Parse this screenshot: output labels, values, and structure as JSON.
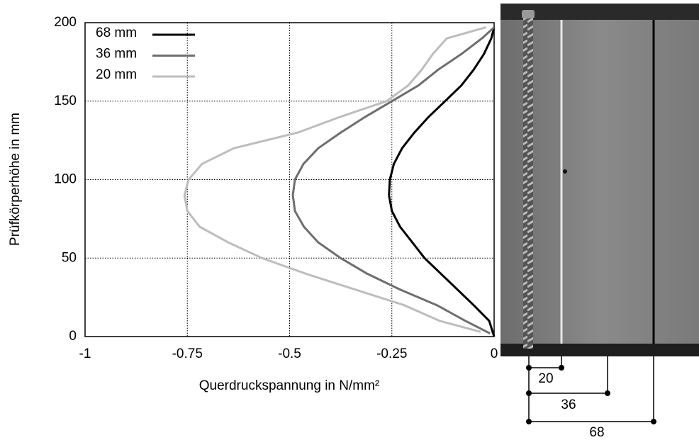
{
  "chart_data": {
    "type": "line",
    "xlabel": "Querdruckspannung in N/mm²",
    "ylabel": "Prüfkörperhöhe in mm",
    "xlim": [
      -1,
      0
    ],
    "xticks": [
      -1,
      -0.75,
      -0.5,
      -0.25,
      0
    ],
    "ylim": [
      0,
      200
    ],
    "yticks": [
      0,
      50,
      100,
      150,
      200
    ],
    "grid": true,
    "legend": "upper left",
    "series": [
      {
        "name": "68 mm",
        "color": "#000000",
        "y": [
          0,
          10,
          20,
          30,
          40,
          50,
          60,
          70,
          80,
          90,
          100,
          110,
          120,
          130,
          140,
          150,
          160,
          170,
          180,
          190,
          197
        ],
        "values": [
          0,
          -0.012,
          -0.05,
          -0.09,
          -0.13,
          -0.17,
          -0.2,
          -0.23,
          -0.25,
          -0.257,
          -0.255,
          -0.245,
          -0.225,
          -0.195,
          -0.16,
          -0.12,
          -0.08,
          -0.05,
          -0.025,
          -0.007,
          0
        ]
      },
      {
        "name": "36 mm",
        "color": "#6e6e6e",
        "y": [
          2,
          10,
          20,
          30,
          40,
          50,
          60,
          70,
          80,
          90,
          100,
          110,
          120,
          130,
          140,
          150,
          160,
          170,
          180,
          190,
          197
        ],
        "values": [
          -0.01,
          -0.07,
          -0.14,
          -0.23,
          -0.31,
          -0.375,
          -0.43,
          -0.465,
          -0.487,
          -0.492,
          -0.487,
          -0.466,
          -0.43,
          -0.375,
          -0.315,
          -0.25,
          -0.185,
          -0.137,
          -0.08,
          -0.03,
          0
        ]
      },
      {
        "name": "20 mm",
        "color": "#bdbdbd",
        "y": [
          3,
          10,
          20,
          30,
          40,
          50,
          60,
          70,
          80,
          90,
          100,
          110,
          120,
          130,
          140,
          150,
          160,
          170,
          180,
          190,
          197
        ],
        "values": [
          -0.033,
          -0.133,
          -0.22,
          -0.34,
          -0.46,
          -0.567,
          -0.65,
          -0.72,
          -0.75,
          -0.757,
          -0.747,
          -0.714,
          -0.636,
          -0.48,
          -0.376,
          -0.263,
          -0.21,
          -0.177,
          -0.15,
          -0.116,
          -0.02
        ]
      }
    ]
  },
  "photo": {
    "dimensions": [
      "20",
      "36",
      "68"
    ]
  }
}
